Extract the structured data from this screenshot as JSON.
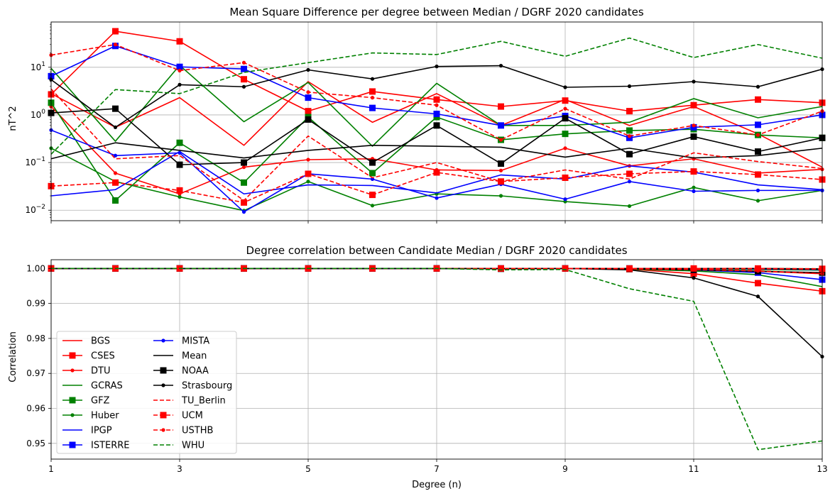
{
  "chart_data": [
    {
      "type": "line",
      "title": "Mean Square Difference per degree between Median / DGRF 2020 candidates",
      "xlabel": "",
      "ylabel": "nT^2",
      "xlim": [
        1,
        13
      ],
      "ylim_log10": [
        -2.22,
        1.95
      ],
      "yscale": "log",
      "grid": true,
      "x": [
        1,
        2,
        3,
        4,
        5,
        6,
        7,
        8,
        9,
        10,
        11,
        12,
        13
      ],
      "xticks": [
        1,
        3,
        5,
        7,
        9,
        11,
        13
      ],
      "yticks": [
        "10^{-2}",
        "10^{-1}",
        "10^{0}",
        "10^{1}"
      ],
      "series": [
        {
          "name": "BGS",
          "color": "#ff0000",
          "style": "solid",
          "marker": "none",
          "values": [
            2.8,
            0.55,
            2.3,
            0.23,
            5.0,
            0.7,
            2.8,
            0.6,
            2.1,
            0.6,
            1.5,
            0.4,
            0.08
          ]
        },
        {
          "name": "CSES",
          "color": "#ff0000",
          "style": "solid",
          "marker": "square",
          "values": [
            2.7,
            57.0,
            35.0,
            5.6,
            1.2,
            3.1,
            2.1,
            1.5,
            2.0,
            1.2,
            1.6,
            2.1,
            1.8
          ]
        },
        {
          "name": "DTU",
          "color": "#ff0000",
          "style": "solid",
          "marker": "dot",
          "values": [
            1.5,
            0.06,
            0.022,
            0.08,
            0.115,
            0.12,
            0.07,
            0.068,
            0.2,
            0.085,
            0.12,
            0.06,
            0.072
          ]
        },
        {
          "name": "GCRAS",
          "color": "#008000",
          "style": "solid",
          "marker": "none",
          "values": [
            9.5,
            0.28,
            11.0,
            0.72,
            4.8,
            0.22,
            4.6,
            0.6,
            0.6,
            0.7,
            2.2,
            0.87,
            1.5
          ]
        },
        {
          "name": "GFZ",
          "color": "#008000",
          "style": "solid",
          "marker": "square",
          "values": [
            1.8,
            0.016,
            0.26,
            0.038,
            0.9,
            0.06,
            0.9,
            0.3,
            0.4,
            0.47,
            0.5,
            0.38,
            0.33
          ]
        },
        {
          "name": "Huber",
          "color": "#008000",
          "style": "solid",
          "marker": "dot",
          "values": [
            0.2,
            0.04,
            0.019,
            0.0098,
            0.04,
            0.0125,
            0.022,
            0.02,
            0.0152,
            0.0122,
            0.03,
            0.0158,
            0.026
          ]
        },
        {
          "name": "IPGP",
          "color": "#0000ff",
          "style": "solid",
          "marker": "none",
          "values": [
            0.02,
            0.027,
            0.17,
            0.022,
            0.034,
            0.033,
            0.023,
            0.055,
            0.045,
            0.085,
            0.063,
            0.034,
            0.027
          ]
        },
        {
          "name": "ISTERRE",
          "color": "#0000ff",
          "style": "solid",
          "marker": "square",
          "values": [
            6.5,
            28.0,
            10.2,
            9.2,
            2.3,
            1.4,
            1.05,
            0.6,
            0.95,
            0.33,
            0.55,
            0.62,
            1.0
          ]
        },
        {
          "name": "MISTA",
          "color": "#0000ff",
          "style": "solid",
          "marker": "dot",
          "values": [
            0.48,
            0.14,
            0.16,
            0.0092,
            0.058,
            0.045,
            0.018,
            0.035,
            0.017,
            0.04,
            0.025,
            0.026,
            0.026
          ]
        },
        {
          "name": "Mean",
          "color": "#000000",
          "style": "solid",
          "marker": "none",
          "values": [
            0.12,
            0.26,
            0.18,
            0.125,
            0.18,
            0.23,
            0.22,
            0.21,
            0.13,
            0.2,
            0.125,
            0.14,
            0.2
          ]
        },
        {
          "name": "NOAA",
          "color": "#000000",
          "style": "solid",
          "marker": "square",
          "values": [
            1.1,
            1.35,
            0.09,
            0.1,
            0.8,
            0.1,
            0.6,
            0.095,
            0.85,
            0.15,
            0.35,
            0.17,
            0.33
          ]
        },
        {
          "name": "Strasbourg",
          "color": "#000000",
          "style": "solid",
          "marker": "dot",
          "values": [
            5.5,
            0.55,
            4.3,
            3.9,
            8.8,
            5.7,
            10.4,
            10.8,
            3.8,
            4.0,
            5.0,
            3.9,
            9.1
          ]
        },
        {
          "name": "TU_Berlin",
          "color": "#ff0000",
          "style": "dashed",
          "marker": "none",
          "values": [
            3.5,
            0.12,
            0.14,
            0.016,
            0.36,
            0.048,
            0.1,
            0.04,
            0.07,
            0.045,
            0.16,
            0.105,
            0.075
          ]
        },
        {
          "name": "UCM",
          "color": "#ff0000",
          "style": "dashed",
          "marker": "square",
          "values": [
            0.032,
            0.038,
            0.026,
            0.0145,
            0.058,
            0.021,
            0.062,
            0.04,
            0.048,
            0.058,
            0.065,
            0.056,
            0.044
          ]
        },
        {
          "name": "USTHB",
          "color": "#ff0000",
          "style": "dashed",
          "marker": "dot",
          "values": [
            18.0,
            30.0,
            8.5,
            12.5,
            3.0,
            2.3,
            1.6,
            0.3,
            1.35,
            0.36,
            0.6,
            0.38,
            1.2
          ]
        },
        {
          "name": "WHU",
          "color": "#008000",
          "style": "dashed",
          "marker": "none",
          "values": [
            0.15,
            3.4,
            2.8,
            7.8,
            12.5,
            20.0,
            18.5,
            35.0,
            17.0,
            41.0,
            16.0,
            30.0,
            15.5
          ]
        }
      ]
    },
    {
      "type": "line",
      "title": "Degree correlation between Candidate Median / DGRF 2020 candidates",
      "xlabel": "Degree (n)",
      "ylabel": "Correlation",
      "xlim": [
        1,
        13
      ],
      "ylim": [
        0.9455,
        1.0025
      ],
      "grid": true,
      "x": [
        1,
        2,
        3,
        4,
        5,
        6,
        7,
        8,
        9,
        10,
        11,
        12,
        13
      ],
      "xticks": [
        "1",
        "3",
        "5",
        "7",
        "9",
        "11",
        "13"
      ],
      "yticks": [
        "0.95",
        "0.96",
        "0.97",
        "0.98",
        "0.99",
        "1.00"
      ],
      "legend": {
        "position": "lower-left",
        "columns": 2
      },
      "series": [
        {
          "name": "BGS",
          "color": "#ff0000",
          "style": "solid",
          "marker": "none",
          "values": [
            1.0,
            1.0,
            1.0,
            1.0,
            1.0,
            1.0,
            1.0,
            1.0,
            1.0,
            0.9999,
            0.9996,
            0.9992,
            0.9985
          ]
        },
        {
          "name": "CSES",
          "color": "#ff0000",
          "style": "solid",
          "marker": "square",
          "values": [
            1.0,
            1.0,
            1.0,
            1.0,
            1.0,
            1.0,
            1.0,
            1.0,
            1.0,
            0.9998,
            0.9985,
            0.9958,
            0.9935
          ]
        },
        {
          "name": "DTU",
          "color": "#ff0000",
          "style": "solid",
          "marker": "dot",
          "values": [
            1.0,
            1.0,
            1.0,
            1.0,
            1.0,
            1.0,
            1.0,
            1.0,
            1.0,
            1.0,
            1.0,
            0.9999,
            0.9998
          ]
        },
        {
          "name": "GCRAS",
          "color": "#008000",
          "style": "solid",
          "marker": "none",
          "values": [
            1.0,
            1.0,
            1.0,
            1.0,
            1.0,
            1.0,
            1.0,
            1.0,
            1.0,
            0.9998,
            0.9993,
            0.9982,
            0.9948
          ]
        },
        {
          "name": "GFZ",
          "color": "#008000",
          "style": "solid",
          "marker": "square",
          "values": [
            1.0,
            1.0,
            1.0,
            1.0,
            1.0,
            1.0,
            1.0,
            1.0,
            1.0,
            1.0,
            0.9999,
            0.9997,
            0.9995
          ]
        },
        {
          "name": "Huber",
          "color": "#008000",
          "style": "solid",
          "marker": "dot",
          "values": [
            1.0,
            1.0,
            1.0,
            1.0,
            1.0,
            1.0,
            1.0,
            1.0,
            1.0,
            1.0,
            1.0,
            1.0,
            0.9999
          ]
        },
        {
          "name": "IPGP",
          "color": "#0000ff",
          "style": "solid",
          "marker": "none",
          "values": [
            1.0,
            1.0,
            1.0,
            1.0,
            1.0,
            1.0,
            1.0,
            1.0,
            1.0,
            1.0,
            1.0,
            0.9999,
            0.9998
          ]
        },
        {
          "name": "ISTERRE",
          "color": "#0000ff",
          "style": "solid",
          "marker": "square",
          "values": [
            1.0,
            1.0,
            1.0,
            1.0,
            1.0,
            1.0,
            1.0,
            1.0,
            1.0,
            1.0,
            0.9996,
            0.9988,
            0.9968
          ]
        },
        {
          "name": "MISTA",
          "color": "#0000ff",
          "style": "solid",
          "marker": "dot",
          "values": [
            1.0,
            1.0,
            1.0,
            1.0,
            1.0,
            1.0,
            1.0,
            1.0,
            1.0,
            1.0,
            1.0,
            0.9999,
            0.9997
          ]
        },
        {
          "name": "Mean",
          "color": "#000000",
          "style": "solid",
          "marker": "none",
          "values": [
            1.0,
            1.0,
            1.0,
            1.0,
            1.0,
            1.0,
            1.0,
            1.0,
            1.0,
            1.0,
            1.0,
            1.0,
            0.9998
          ]
        },
        {
          "name": "NOAA",
          "color": "#000000",
          "style": "solid",
          "marker": "square",
          "values": [
            1.0,
            1.0,
            1.0,
            1.0,
            1.0,
            1.0,
            1.0,
            0.9999,
            1.0,
            0.9999,
            0.9996,
            0.9992,
            0.9988
          ]
        },
        {
          "name": "Strasbourg",
          "color": "#000000",
          "style": "solid",
          "marker": "dot",
          "values": [
            1.0,
            1.0,
            1.0,
            1.0,
            1.0,
            1.0,
            1.0,
            1.0,
            1.0,
            0.9996,
            0.9973,
            0.992,
            0.9748
          ]
        },
        {
          "name": "TU_Berlin",
          "color": "#ff0000",
          "style": "dashed",
          "marker": "none",
          "values": [
            1.0,
            1.0,
            1.0,
            1.0,
            1.0,
            1.0,
            1.0,
            1.0,
            1.0,
            1.0,
            1.0,
            0.9999,
            0.9998
          ]
        },
        {
          "name": "UCM",
          "color": "#ff0000",
          "style": "dashed",
          "marker": "square",
          "values": [
            1.0,
            1.0,
            1.0,
            1.0,
            1.0,
            1.0,
            1.0,
            1.0,
            1.0,
            1.0,
            1.0,
            1.0,
            0.9999
          ]
        },
        {
          "name": "USTHB",
          "color": "#ff0000",
          "style": "dashed",
          "marker": "dot",
          "values": [
            1.0,
            1.0,
            1.0,
            1.0,
            1.0,
            1.0,
            1.0,
            1.0,
            1.0,
            0.9999,
            0.9997,
            0.9993,
            0.9985
          ]
        },
        {
          "name": "WHU",
          "color": "#008000",
          "style": "dashed",
          "marker": "none",
          "values": [
            1.0,
            1.0,
            1.0,
            1.0,
            1.0,
            1.0,
            1.0,
            0.9996,
            0.9997,
            0.9942,
            0.9906,
            0.9482,
            0.9507
          ]
        }
      ]
    }
  ]
}
